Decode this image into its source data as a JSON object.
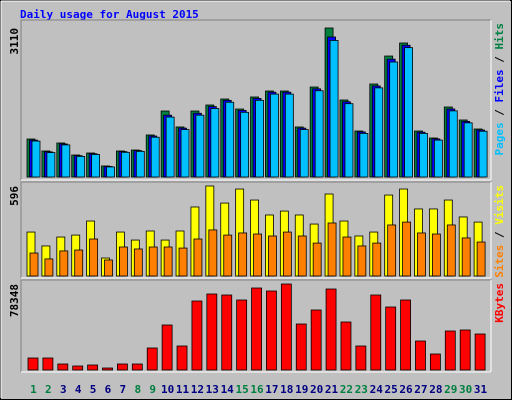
{
  "title": "Daily usage for August 2015",
  "chart_data": [
    {
      "type": "bar",
      "ylim": [
        0,
        3110
      ],
      "yticks": [
        3110
      ],
      "legend_separator": " / ",
      "series": [
        {
          "name": "Hits",
          "color": "#008040",
          "values": [
            793,
            543,
            710,
            459,
            501,
            230,
            543,
            563,
            877,
            1377,
            1044,
            1377,
            1503,
            1628,
            1419,
            1670,
            1795,
            1795,
            1044,
            1878,
            3110,
            1607,
            960,
            1941,
            2525,
            2797,
            960,
            814,
            1461,
            1190,
            1002
          ]
        },
        {
          "name": "Files",
          "color": "#0000ff",
          "values": [
            770,
            525,
            690,
            445,
            485,
            220,
            530,
            550,
            855,
            1290,
            1020,
            1330,
            1470,
            1600,
            1390,
            1640,
            1770,
            1770,
            1020,
            1840,
            2922,
            1570,
            940,
            1900,
            2460,
            2750,
            935,
            795,
            1420,
            1160,
            980
          ]
        },
        {
          "name": "Pages",
          "color": "#00c0ff",
          "values": [
            750,
            510,
            670,
            430,
            470,
            210,
            515,
            535,
            830,
            1250,
            990,
            1290,
            1430,
            1560,
            1350,
            1600,
            1730,
            1730,
            990,
            1800,
            2850,
            1530,
            910,
            1860,
            2400,
            2700,
            910,
            770,
            1380,
            1130,
            955
          ]
        }
      ]
    },
    {
      "type": "bar",
      "ylim": [
        0,
        596
      ],
      "yticks": [
        596
      ],
      "legend_separator": " / ",
      "series": [
        {
          "name": "Visits",
          "color": "#ffff00",
          "values": [
            291,
            199,
            258,
            271,
            364,
            119,
            291,
            238,
            298,
            238,
            298,
            457,
            596,
            483,
            576,
            503,
            404,
            430,
            404,
            344,
            543,
            364,
            265,
            291,
            536,
            576,
            444,
            444,
            503,
            391,
            357
          ]
        },
        {
          "name": "Sites",
          "color": "#ff8000",
          "values": [
            152,
            113,
            166,
            172,
            245,
            106,
            192,
            179,
            192,
            192,
            185,
            245,
            305,
            271,
            285,
            278,
            265,
            291,
            265,
            218,
            351,
            258,
            199,
            218,
            338,
            357,
            285,
            278,
            338,
            252,
            225
          ]
        }
      ]
    },
    {
      "type": "bar",
      "ylim": [
        0,
        78348
      ],
      "yticks": [
        78348
      ],
      "series": [
        {
          "name": "KBytes",
          "color": "#ff0000",
          "values": [
            10932,
            10932,
            5466,
            3644,
            4555,
            1822,
            5466,
            5466,
            20042,
            40995,
            21864,
            62859,
            69236,
            68325,
            63770,
            74702,
            71969,
            78348,
            41906,
            54660,
            73791,
            43728,
            21864,
            68325,
            57393,
            63770,
            26419,
            14576,
            35529,
            36440,
            32796
          ]
        }
      ],
      "categories": [
        "1",
        "2",
        "3",
        "4",
        "5",
        "6",
        "7",
        "8",
        "9",
        "10",
        "11",
        "12",
        "13",
        "14",
        "15",
        "16",
        "17",
        "18",
        "19",
        "20",
        "21",
        "22",
        "23",
        "24",
        "25",
        "26",
        "27",
        "28",
        "29",
        "30",
        "31"
      ],
      "category_colors": [
        "#008040",
        "#008040",
        "#000080",
        "#000080",
        "#000080",
        "#000080",
        "#000080",
        "#008040",
        "#008040",
        "#000080",
        "#000080",
        "#000080",
        "#000080",
        "#000080",
        "#008040",
        "#008040",
        "#000080",
        "#000080",
        "#000080",
        "#000080",
        "#000080",
        "#008040",
        "#008040",
        "#000080",
        "#000080",
        "#000080",
        "#000080",
        "#000080",
        "#008040",
        "#008040",
        "#000080"
      ]
    }
  ]
}
